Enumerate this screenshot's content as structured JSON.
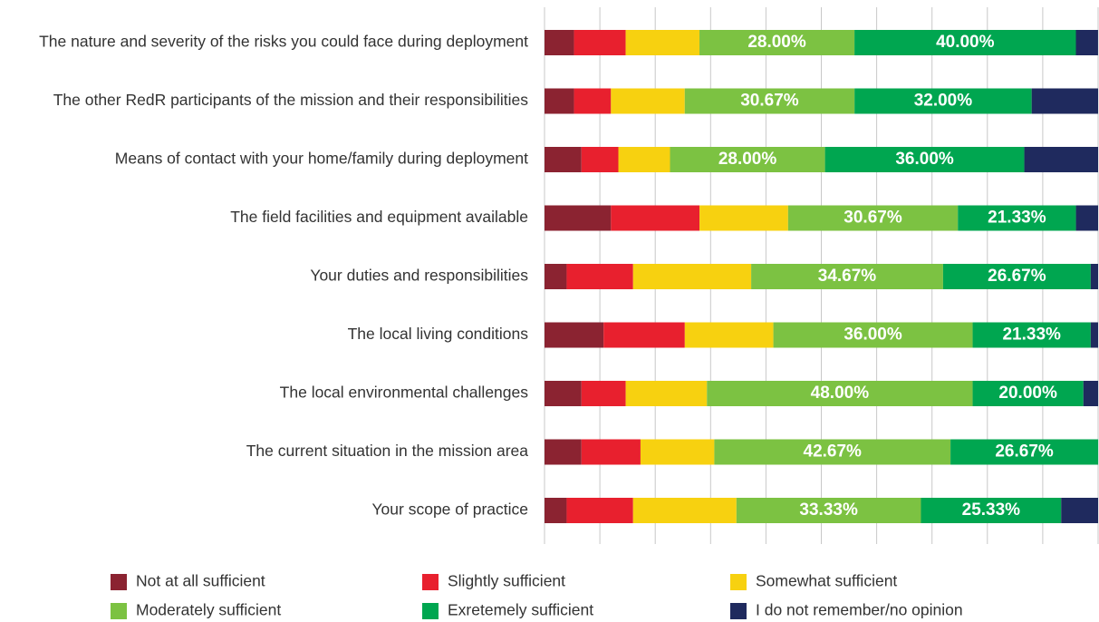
{
  "chart_data": {
    "type": "stacked_bar_horizontal",
    "categories": [
      "The nature and severity of the risks you could face during deployment",
      "The other RedR participants of the mission and their responsibilities",
      "Means of contact with your home/family during deployment",
      "The field facilities and equipment available",
      "Your duties and responsibilities",
      "The local living conditions",
      "The local environmental challenges",
      "The current situation in the mission area",
      "Your scope of practice"
    ],
    "series": [
      {
        "name": "Not at all sufficient",
        "color": "#8b2331",
        "values": [
          5.33,
          5.33,
          6.67,
          12,
          4,
          10.67,
          6.67,
          6.67,
          4
        ]
      },
      {
        "name": "Slightly sufficient",
        "color": "#e8202e",
        "values": [
          9.33,
          6.67,
          6.67,
          16,
          12,
          14.67,
          8,
          10.67,
          12
        ]
      },
      {
        "name": "Somewhat sufficient",
        "color": "#f7d110",
        "values": [
          13.33,
          13.33,
          9.33,
          16,
          21.33,
          16,
          14.67,
          13.33,
          18.67
        ]
      },
      {
        "name": "Moderately sufficient",
        "color": "#7cc242",
        "values": [
          28,
          30.67,
          28,
          30.67,
          34.67,
          36,
          48,
          42.67,
          33.33
        ],
        "value_labels": [
          "28.00%",
          "30.67%",
          "28.00%",
          "30.67%",
          "34.67%",
          "36.00%",
          "48.00%",
          "42.67%",
          "33.33%"
        ]
      },
      {
        "name": "Exretemely sufficient",
        "color": "#00a650",
        "values": [
          40,
          32,
          36,
          21.33,
          26.67,
          21.33,
          20,
          26.67,
          25.33
        ],
        "value_labels": [
          "40.00%",
          "32.00%",
          "36.00%",
          "21.33%",
          "26.67%",
          "21.33%",
          "20.00%",
          "26.67%",
          "25.33%"
        ]
      },
      {
        "name": "I do not remember/no opinion",
        "color": "#1f2a5e",
        "values": [
          4,
          12,
          13.33,
          4,
          1.33,
          1.33,
          2.67,
          0,
          6.67
        ]
      }
    ],
    "xlim": [
      0,
      100
    ],
    "xticks": [
      0,
      10,
      20,
      30,
      40,
      50,
      60,
      70,
      80,
      90,
      100
    ],
    "grid": true
  }
}
